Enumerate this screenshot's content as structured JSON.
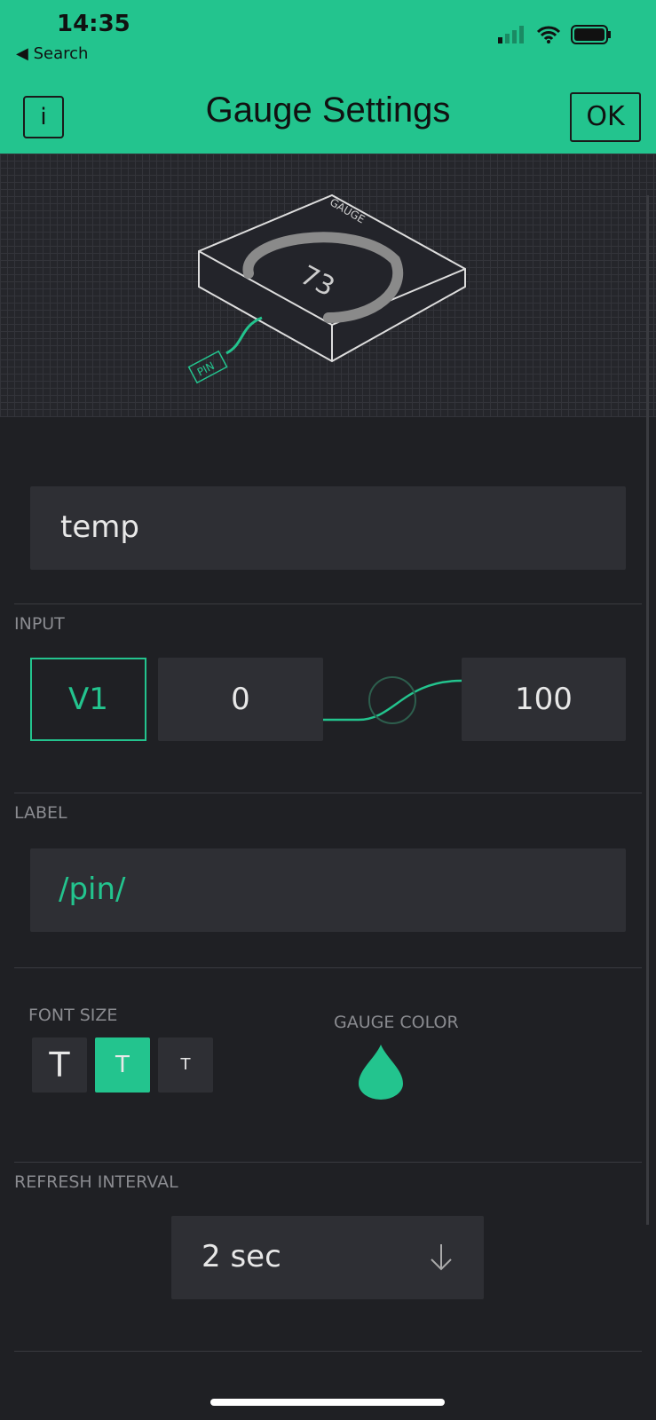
{
  "status_bar": {
    "time": "14:35",
    "back": "◀ Search"
  },
  "header": {
    "title": "Gauge Settings",
    "info": "i",
    "ok": "OK"
  },
  "preview": {
    "gauge_text": "GAUGE",
    "value": "73",
    "pin": "PIN"
  },
  "name_field": {
    "value": "temp"
  },
  "input": {
    "section": "INPUT",
    "pin": "V1",
    "min": "0",
    "max": "100"
  },
  "label": {
    "section": "LABEL",
    "value": "/pin/"
  },
  "font_size": {
    "section": "FONT SIZE",
    "options": [
      "T",
      "T",
      "T"
    ],
    "selected": 1
  },
  "gauge_color": {
    "section": "GAUGE COLOR",
    "color": "#23c48e"
  },
  "refresh": {
    "section": "REFRESH INTERVAL",
    "value": "2 sec"
  },
  "accent": "#23c48e"
}
